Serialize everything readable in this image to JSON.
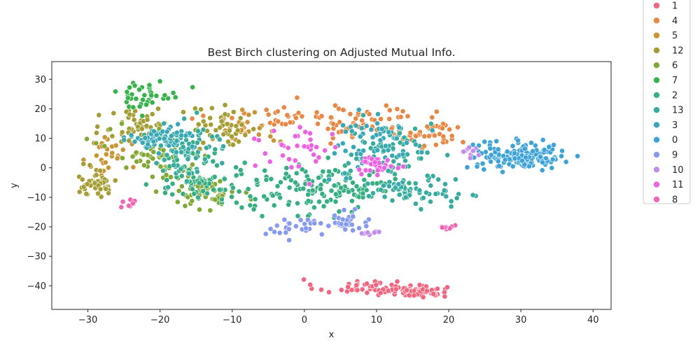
{
  "chart_data": {
    "type": "scatter",
    "title": "Best Birch clustering on Adjusted Mutual Info.",
    "xlabel": "x",
    "ylabel": "y",
    "xlim": [
      -35,
      42.5
    ],
    "ylim": [
      -48,
      36
    ],
    "xticks": [
      -30,
      -20,
      -10,
      0,
      10,
      20,
      30,
      40
    ],
    "yticks": [
      -40,
      -30,
      -20,
      -10,
      0,
      10,
      20,
      30
    ],
    "xtick_labels": [
      "−30",
      "−20",
      "−10",
      "0",
      "10",
      "20",
      "30",
      "40"
    ],
    "ytick_labels": [
      "−40",
      "−30",
      "−20",
      "−10",
      "0",
      "10",
      "20",
      "30"
    ],
    "grid": false,
    "legend_placement": "outside-right",
    "legend_labels": [
      "1",
      "4",
      "5",
      "12",
      "6",
      "7",
      "2",
      "13",
      "3",
      "0",
      "9",
      "10",
      "11",
      "8"
    ],
    "colors": {
      "1": "#f0667f",
      "4": "#e88743",
      "5": "#c99433",
      "12": "#a39d33",
      "6": "#81a834",
      "7": "#35b249",
      "2": "#35af82",
      "13": "#37ab9d",
      "3": "#38a8b5",
      "0": "#3da2d6",
      "9": "#879af0",
      "10": "#c18ded",
      "11": "#ee61e0",
      "8": "#f163b3"
    },
    "clusters": [
      {
        "label": "1",
        "n": 110,
        "blobs": [
          [
            9,
            -40.5,
            5,
            1.8
          ],
          [
            16,
            -42,
            2.5,
            1.2
          ]
        ]
      },
      {
        "label": "4",
        "n": 130,
        "blobs": [
          [
            -1,
            17,
            8,
            3.5
          ],
          [
            8,
            16,
            5,
            4
          ],
          [
            18,
            11,
            3,
            3
          ]
        ]
      },
      {
        "label": "5",
        "n": 60,
        "blobs": [
          [
            -8,
            14,
            3,
            4
          ],
          [
            -27,
            4,
            2,
            5
          ]
        ]
      },
      {
        "label": "12",
        "n": 140,
        "blobs": [
          [
            -23,
            15,
            3,
            5
          ],
          [
            -29,
            -5,
            2,
            3
          ],
          [
            -11,
            13,
            3,
            5
          ]
        ]
      },
      {
        "label": "6",
        "n": 120,
        "blobs": [
          [
            -20,
            5,
            5,
            6
          ],
          [
            -14,
            -8,
            3,
            4
          ]
        ]
      },
      {
        "label": "7",
        "n": 40,
        "blobs": [
          [
            -22,
            25,
            3,
            3
          ]
        ]
      },
      {
        "label": "2",
        "n": 220,
        "blobs": [
          [
            -3,
            -8,
            6,
            6
          ],
          [
            6,
            -6,
            4,
            4
          ],
          [
            -15,
            -3,
            4,
            6
          ]
        ]
      },
      {
        "label": "13",
        "n": 200,
        "blobs": [
          [
            -16,
            6,
            4,
            6
          ],
          [
            12,
            5,
            4,
            7
          ],
          [
            15,
            -8,
            4,
            3
          ]
        ]
      },
      {
        "label": "3",
        "n": 120,
        "blobs": [
          [
            10,
            8,
            4,
            7
          ],
          [
            -20,
            10,
            3,
            3
          ]
        ]
      },
      {
        "label": "0",
        "n": 160,
        "blobs": [
          [
            30,
            4,
            4,
            3
          ]
        ]
      },
      {
        "label": "9",
        "n": 60,
        "blobs": [
          [
            -1,
            -20,
            3,
            2
          ],
          [
            6,
            -19,
            2,
            2
          ]
        ]
      },
      {
        "label": "10",
        "n": 20,
        "blobs": [
          [
            23,
            5,
            1.5,
            2
          ],
          [
            9,
            -22,
            1,
            0.6
          ]
        ]
      },
      {
        "label": "11",
        "n": 70,
        "blobs": [
          [
            -1,
            6,
            4,
            5
          ],
          [
            10,
            1,
            2,
            2
          ]
        ]
      },
      {
        "label": "8",
        "n": 15,
        "blobs": [
          [
            20,
            -20,
            0.8,
            0.5
          ],
          [
            -24,
            -12,
            1,
            1
          ]
        ]
      }
    ]
  }
}
